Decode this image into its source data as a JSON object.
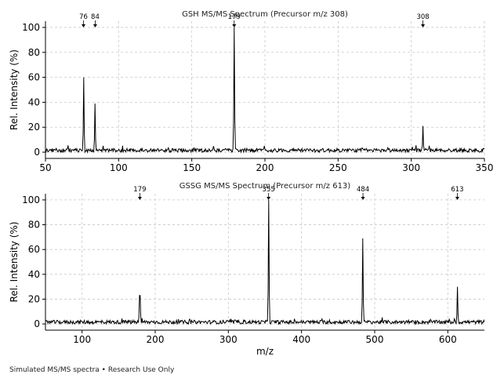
{
  "footer": "Simulated MS/MS spectra • Research Use Only",
  "chart_data": [
    {
      "type": "line",
      "title": "GSH MS/MS Spectrum (Precursor m/z 308)",
      "xlabel": "",
      "ylabel": "Rel. Intensity (%)",
      "xlim": [
        50,
        350
      ],
      "ylim": [
        -5,
        105
      ],
      "xticks": [
        50,
        100,
        150,
        200,
        250,
        300,
        350
      ],
      "yticks": [
        0,
        20,
        40,
        60,
        80,
        100
      ],
      "grid": true,
      "baseline_noise": [
        0,
        3
      ],
      "peaks": [
        {
          "x": 76,
          "y": 60,
          "label": "76"
        },
        {
          "x": 84,
          "y": 39,
          "label": "84"
        },
        {
          "x": 179,
          "y": 100,
          "label": "179"
        },
        {
          "x": 308,
          "y": 21,
          "label": "308"
        }
      ]
    },
    {
      "type": "line",
      "title": "GSSG MS/MS Spectrum (Precursor m/z 613)",
      "xlabel": "m/z",
      "ylabel": "Rel. Intensity (%)",
      "xlim": [
        50,
        650
      ],
      "ylim": [
        -5,
        105
      ],
      "xticks": [
        100,
        200,
        300,
        400,
        500,
        600
      ],
      "yticks": [
        0,
        20,
        40,
        60,
        80,
        100
      ],
      "grid": true,
      "baseline_noise": [
        0,
        3
      ],
      "peaks": [
        {
          "x": 179,
          "y": 23,
          "label": "179"
        },
        {
          "x": 355,
          "y": 100,
          "label": "355"
        },
        {
          "x": 484,
          "y": 69,
          "label": "484"
        },
        {
          "x": 613,
          "y": 30,
          "label": "613"
        }
      ]
    }
  ]
}
